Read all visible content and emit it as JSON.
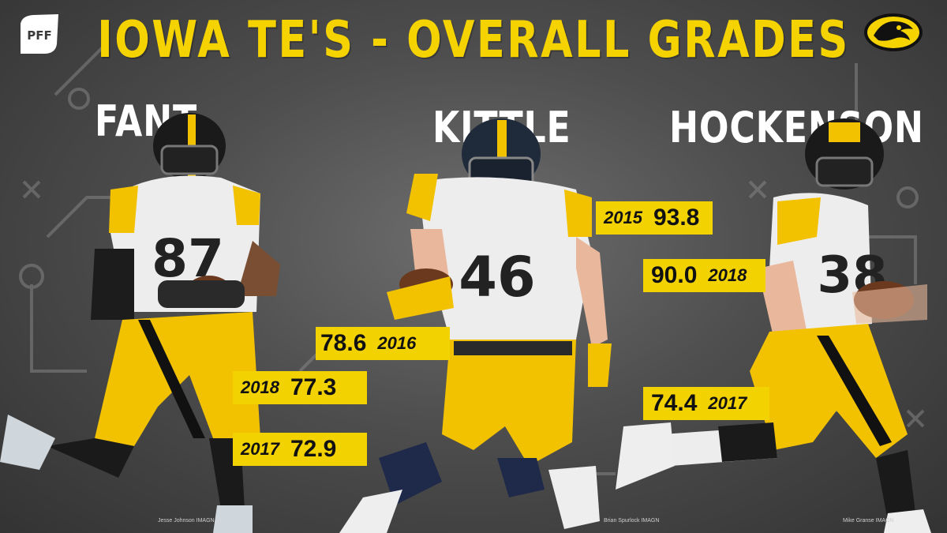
{
  "title": "IOWA TE'S - OVERALL GRADES",
  "brand": {
    "logo_text": "PFF",
    "accent_color": "#f2d200",
    "name_color": "#ffffff"
  },
  "players": [
    {
      "name": "FANT",
      "jersey": "87",
      "grades": [
        {
          "year": "2018",
          "grade": "77.3"
        },
        {
          "year": "2017",
          "grade": "72.9"
        }
      ],
      "photo_credit": "Jesse Johnson IMAGN"
    },
    {
      "name": "KITTLE",
      "jersey": "46",
      "grades": [
        {
          "year": "2015",
          "grade": "93.8"
        },
        {
          "year": "2016",
          "grade": "78.6"
        }
      ],
      "photo_credit": "Brian Spurlock IMAGN"
    },
    {
      "name": "HOCKENSON",
      "jersey": "38",
      "grades": [
        {
          "year": "2018",
          "grade": "90.0"
        },
        {
          "year": "2017",
          "grade": "74.4"
        }
      ],
      "photo_credit": "Mike Granse IMAGN"
    }
  ],
  "icons": {
    "league_logo": "pff-logo",
    "team_logo": "iowa-hawkeyes-logo"
  }
}
